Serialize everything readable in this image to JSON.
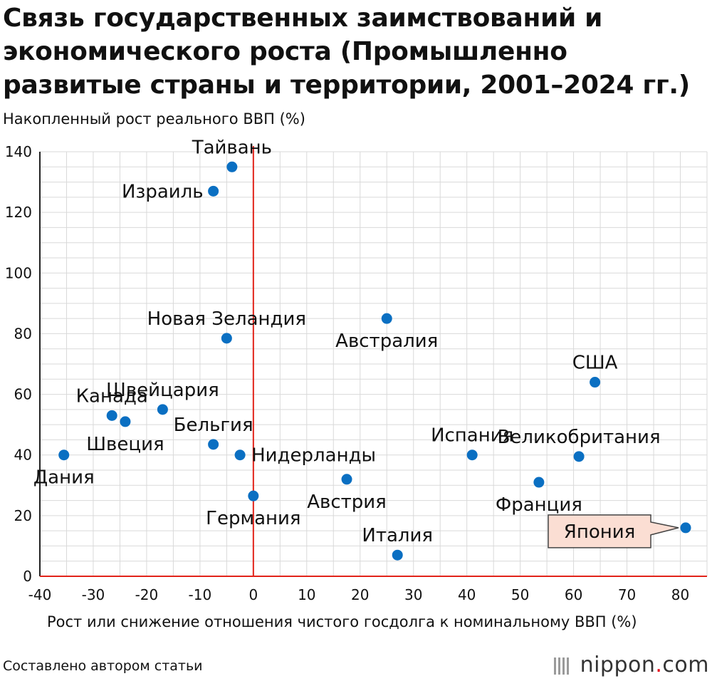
{
  "title": "Связь государственных заимствований и экономического роста (Промышленно развитые страны и территории, 2001–2024  гг.)",
  "source": "Составлено автором статьи",
  "logo": {
    "name": "nippon",
    "dot": ".",
    "suffix": "com"
  },
  "colors": {
    "point": "#0a6fc2",
    "zero_line": "#e2231a",
    "grid": "#d9d9d9",
    "highlight_fill": "#fbded3",
    "highlight_border": "#444444"
  },
  "chart_data": {
    "type": "scatter",
    "title": "Связь государственных заимствований и экономического роста (Промышленно развитые страны и территории, 2001–2024  гг.)",
    "xlabel": "Рост или снижение отношения чистого госдолга к номинальному ВВП (%)",
    "ylabel": "Накопленный рост реального ВВП (%)",
    "xlim": [
      -40,
      85
    ],
    "ylim": [
      0,
      140
    ],
    "xticks": [
      -40,
      -30,
      -20,
      -10,
      0,
      10,
      20,
      30,
      40,
      50,
      60,
      70,
      80
    ],
    "yticks": [
      0,
      20,
      40,
      60,
      80,
      100,
      120,
      140
    ],
    "grid": true,
    "zero_line_x": 0,
    "points": [
      {
        "label": "Тайвань",
        "x": -4,
        "y": 135,
        "label_pos": "above"
      },
      {
        "label": "Израиль",
        "x": -7.5,
        "y": 127,
        "label_pos": "left"
      },
      {
        "label": "Новая Зеландия",
        "x": -5,
        "y": 78.5,
        "label_pos": "above"
      },
      {
        "label": "Австралия",
        "x": 25,
        "y": 85,
        "label_pos": "below"
      },
      {
        "label": "США",
        "x": 64,
        "y": 64,
        "label_pos": "above"
      },
      {
        "label": "Канада",
        "x": -26.5,
        "y": 53,
        "label_pos": "above"
      },
      {
        "label": "Швеция",
        "x": -24,
        "y": 51,
        "label_pos": "below"
      },
      {
        "label": "Швейцария",
        "x": -17,
        "y": 55,
        "label_pos": "above"
      },
      {
        "label": "Бельгия",
        "x": -7.5,
        "y": 43.5,
        "label_pos": "above"
      },
      {
        "label": "Нидерланды",
        "x": -2.5,
        "y": 40,
        "label_pos": "right"
      },
      {
        "label": "Дания",
        "x": -35.5,
        "y": 40,
        "label_pos": "below"
      },
      {
        "label": "Испания",
        "x": 41,
        "y": 40,
        "label_pos": "above"
      },
      {
        "label": "Великобритания",
        "x": 61,
        "y": 39.5,
        "label_pos": "above"
      },
      {
        "label": "Австрия",
        "x": 17.5,
        "y": 32,
        "label_pos": "below"
      },
      {
        "label": "Франция",
        "x": 53.5,
        "y": 31,
        "label_pos": "below"
      },
      {
        "label": "Германия",
        "x": 0,
        "y": 26.5,
        "label_pos": "below"
      },
      {
        "label": "Италия",
        "x": 27,
        "y": 7,
        "label_pos": "above"
      },
      {
        "label": "Япония",
        "x": 81,
        "y": 16,
        "label_pos": "callout",
        "highlight": true
      }
    ]
  }
}
